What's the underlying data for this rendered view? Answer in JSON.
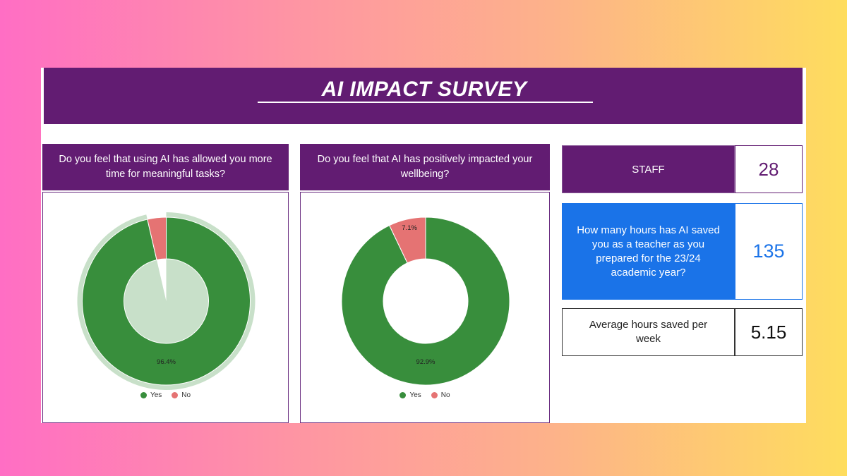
{
  "title": "AI IMPACT SURVEY",
  "colors": {
    "banner": "#621c72",
    "yes": "#388e3c",
    "no": "#e57373",
    "highlight": "#1a73e8"
  },
  "chart_data": [
    {
      "type": "pie",
      "question": "Do you feel that using AI has allowed you more time for meaningful tasks?",
      "categories": [
        "Yes",
        "No"
      ],
      "values": [
        96.4,
        3.6
      ],
      "data_labels": [
        "96.4%",
        ""
      ],
      "legend": [
        "Yes",
        "No"
      ],
      "legend_position": "bottom",
      "highlighted_slice": "Yes"
    },
    {
      "type": "pie",
      "question": "Do you feel that AI has positively impacted your wellbeing?",
      "categories": [
        "Yes",
        "No"
      ],
      "values": [
        92.9,
        7.1
      ],
      "data_labels": [
        "92.9%",
        "7.1%"
      ],
      "legend": [
        "Yes",
        "No"
      ],
      "legend_position": "bottom"
    }
  ],
  "stats": {
    "staff": {
      "label": "STAFF",
      "value": "28"
    },
    "hours": {
      "label": "How many hours has AI saved you as a teacher as you prepared for the 23/24 academic year?",
      "value": "135"
    },
    "avg": {
      "label": "Average hours saved per week",
      "value": "5.15"
    }
  }
}
